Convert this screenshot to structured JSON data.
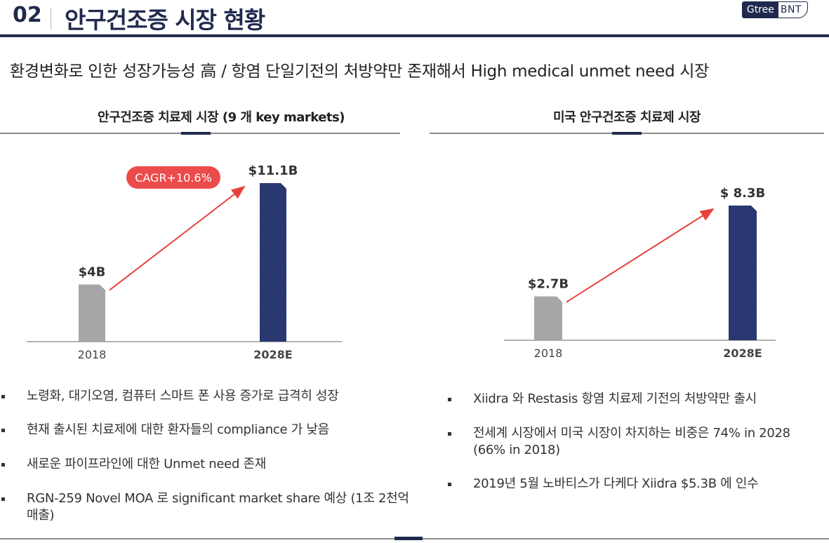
{
  "header": {
    "number": "02",
    "title": "안구건조증 시장 현황",
    "logo_g": "Gtree",
    "logo_b": "BNT"
  },
  "subtitle": "환경변화로 인한 성장가능성 高 / 항염 단일기전의 처방약만 존재해서 High medical unmet need 시장",
  "left": {
    "title": "안구건조증 치료제 시장 (9 개 key markets)",
    "bullets": [
      "노령화, 대기오염, 컴퓨터 스마트 폰 사용 증가로 급격히 성장",
      "현재 출시된 치료제에 대한 환자들의 compliance 가 낮음",
      "새로운 파이프라인에 대한 Unmet need 존재",
      "RGN-259 Novel MOA 로 significant market share 예상 (1조 2천억 매출)"
    ]
  },
  "right": {
    "title": "미국 안구건조증 치료제 시장",
    "bullets": [
      "Xiidra 와 Restasis 항염 치료제 기전의 처방약만 출시",
      "전세계 시장에서 미국 시장이 차지하는 비중은 74% in 2028 (66% in 2018)",
      "2019년 5월 노바티스가 다케다 Xiidra $5.3B 에 인수"
    ]
  },
  "colors": {
    "navy": "#1f2a4d",
    "gray_bar": "#a6a6a6",
    "arrow": "#e8413c",
    "badge": "#ec4b4b"
  },
  "chart_data": [
    {
      "type": "bar",
      "categories": [
        "2018",
        "2028E"
      ],
      "values": [
        4,
        11.1
      ],
      "data_labels": [
        "$4B",
        "$11.1B"
      ],
      "annotation": "CAGR+10.6%",
      "unit": "$B"
    },
    {
      "type": "bar",
      "categories": [
        "2018",
        "2028E"
      ],
      "values": [
        2.7,
        8.3
      ],
      "data_labels": [
        "$2.7B",
        "$ 8.3B"
      ],
      "unit": "$B"
    }
  ]
}
